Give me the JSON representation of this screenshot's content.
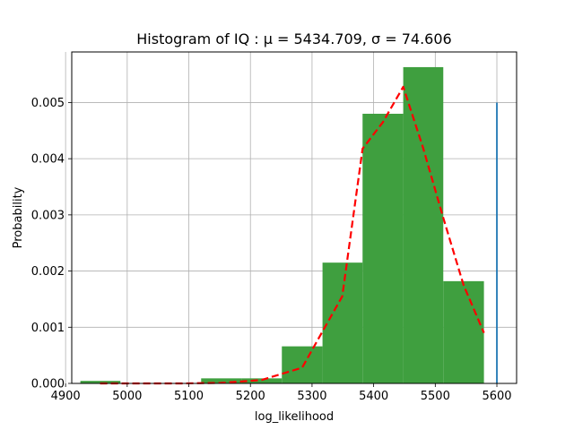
{
  "chart_data": {
    "type": "bar",
    "title": "Histogram of IQ :  μ = 5434.709,  σ = 74.606",
    "xlabel": "log_likelihood",
    "ylabel": "Probability",
    "xlim": [
      4910,
      5632
    ],
    "ylim": [
      0,
      0.0059
    ],
    "x_ticks": [
      4900,
      5000,
      5100,
      5200,
      5300,
      5400,
      5500,
      5600
    ],
    "y_ticks": [
      0.0,
      0.001,
      0.002,
      0.003,
      0.004,
      0.005
    ],
    "y_tick_labels": [
      "0.000",
      "0.001",
      "0.002",
      "0.003",
      "0.004",
      "0.005"
    ],
    "grid": true,
    "bins": [
      {
        "x0": 4924,
        "x1": 4989,
        "value": 4.5e-05
      },
      {
        "x0": 4989,
        "x1": 5055,
        "value": 0.0
      },
      {
        "x0": 5055,
        "x1": 5120,
        "value": 0.0
      },
      {
        "x0": 5120,
        "x1": 5186,
        "value": 9e-05
      },
      {
        "x0": 5186,
        "x1": 5251,
        "value": 9e-05
      },
      {
        "x0": 5251,
        "x1": 5317,
        "value": 0.00066
      },
      {
        "x0": 5317,
        "x1": 5382,
        "value": 0.00215
      },
      {
        "x0": 5382,
        "x1": 5448,
        "value": 0.0048
      },
      {
        "x0": 5448,
        "x1": 5513,
        "value": 0.00563
      },
      {
        "x0": 5513,
        "x1": 5579,
        "value": 0.00182
      }
    ],
    "bar_color": "#3f9f3f",
    "fit_curve": {
      "color": "#ff0000",
      "style": "dashed",
      "x": [
        4956,
        5022,
        5087,
        5153,
        5218,
        5284,
        5349,
        5382,
        5415,
        5448,
        5480,
        5513,
        5546,
        5579
      ],
      "y": [
        0.0,
        0.0,
        0.0,
        1e-05,
        6e-05,
        0.00028,
        0.00155,
        0.00418,
        0.00465,
        0.00528,
        0.0042,
        0.00295,
        0.00175,
        0.0009
      ]
    },
    "vertical_line": {
      "x": 5600,
      "y0": 0,
      "y1": 0.005,
      "color": "#1f77b4"
    }
  }
}
